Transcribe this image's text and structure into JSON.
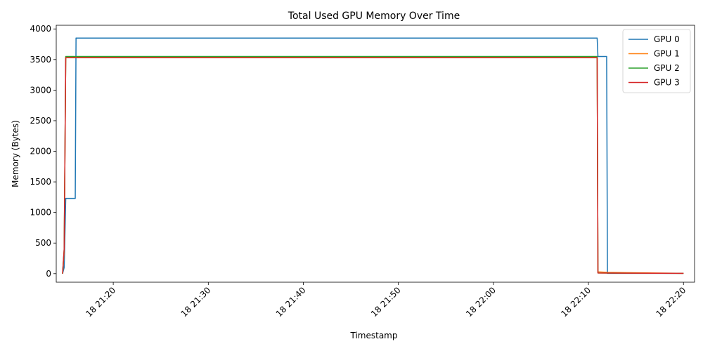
{
  "chart_data": {
    "type": "line",
    "title": "Total Used GPU Memory Over Time",
    "xlabel": "Timestamp",
    "ylabel": "Memory (Bytes)",
    "xlim": [
      "2024-01-18 21:14:00",
      "2024-01-18 22:21:10"
    ],
    "ylim": [
      -140,
      4060
    ],
    "x_ticks": [
      {
        "value": "2024-01-18 21:20:00",
        "label": "18 21:20"
      },
      {
        "value": "2024-01-18 21:30:00",
        "label": "18 21:30"
      },
      {
        "value": "2024-01-18 21:40:00",
        "label": "18 21:40"
      },
      {
        "value": "2024-01-18 21:50:00",
        "label": "18 21:50"
      },
      {
        "value": "2024-01-18 22:00:00",
        "label": "18 22:00"
      },
      {
        "value": "2024-01-18 22:10:00",
        "label": "18 22:10"
      },
      {
        "value": "2024-01-18 22:20:00",
        "label": "18 22:20"
      }
    ],
    "y_ticks": [
      0,
      500,
      1000,
      1500,
      2000,
      2500,
      3000,
      3500,
      4000
    ],
    "grid": false,
    "legend_position": "top-right",
    "series": [
      {
        "name": "GPU 0",
        "color": "#1f77b4",
        "points": [
          [
            "2024-01-18 21:14:40",
            0
          ],
          [
            "2024-01-18 21:14:50",
            100
          ],
          [
            "2024-01-18 21:15:00",
            1230
          ],
          [
            "2024-01-18 21:16:00",
            1230
          ],
          [
            "2024-01-18 21:16:05",
            3850
          ],
          [
            "2024-01-18 22:10:55",
            3850
          ],
          [
            "2024-01-18 22:11:00",
            3550
          ],
          [
            "2024-01-18 22:11:55",
            3550
          ],
          [
            "2024-01-18 22:12:00",
            5
          ],
          [
            "2024-01-18 22:20:00",
            5
          ]
        ]
      },
      {
        "name": "GPU 1",
        "color": "#ff7f0e",
        "points": [
          [
            "2024-01-18 21:14:40",
            0
          ],
          [
            "2024-01-18 21:14:50",
            350
          ],
          [
            "2024-01-18 21:15:00",
            3540
          ],
          [
            "2024-01-18 22:10:55",
            3540
          ],
          [
            "2024-01-18 22:11:00",
            30
          ],
          [
            "2024-01-18 22:12:00",
            20
          ],
          [
            "2024-01-18 22:20:00",
            5
          ]
        ]
      },
      {
        "name": "GPU 2",
        "color": "#2ca02c",
        "points": [
          [
            "2024-01-18 21:14:40",
            0
          ],
          [
            "2024-01-18 21:14:50",
            400
          ],
          [
            "2024-01-18 21:15:00",
            3550
          ],
          [
            "2024-01-18 22:10:55",
            3550
          ],
          [
            "2024-01-18 22:11:00",
            10
          ],
          [
            "2024-01-18 22:20:00",
            5
          ]
        ]
      },
      {
        "name": "GPU 3",
        "color": "#d62728",
        "points": [
          [
            "2024-01-18 21:14:40",
            0
          ],
          [
            "2024-01-18 21:14:50",
            400
          ],
          [
            "2024-01-18 21:15:00",
            3530
          ],
          [
            "2024-01-18 22:10:55",
            3530
          ],
          [
            "2024-01-18 22:11:00",
            10
          ],
          [
            "2024-01-18 22:20:00",
            5
          ]
        ]
      }
    ]
  }
}
